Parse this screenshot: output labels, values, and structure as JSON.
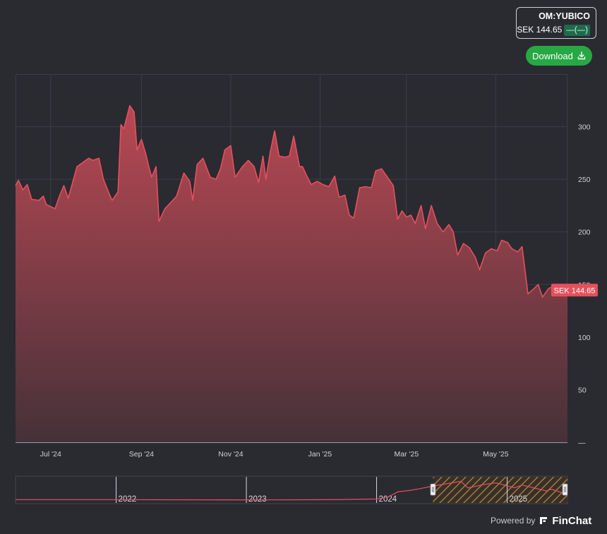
{
  "ticker": {
    "symbol": "OM:YUBICO",
    "price_label": "SEK 144.65",
    "change_label": "—(—)"
  },
  "download": {
    "label": "Download",
    "icon": "download-icon"
  },
  "footer": {
    "powered_by": "Powered by",
    "brand": "FinChat",
    "logo_icon": "finchat-logo-icon"
  },
  "colors": {
    "line": "#e5505d",
    "area_top": "#b94853",
    "area_bottom": "#463139",
    "background": "#2a2a31",
    "download_button": "#27a844",
    "change_badge": "#1d6b4a"
  },
  "chart_data": {
    "type": "area",
    "title": "",
    "xlabel": "",
    "ylabel": "",
    "currency": "SEK",
    "ylim": [
      0,
      350
    ],
    "xlim": [
      "2024-06-07",
      "2025-06-19"
    ],
    "yticks": [
      {
        "value": 300,
        "label": "300"
      },
      {
        "value": 250,
        "label": "250"
      },
      {
        "value": 200,
        "label": "200"
      },
      {
        "value": 150,
        "label": "150"
      },
      {
        "value": 100,
        "label": "100"
      },
      {
        "value": 50,
        "label": "50"
      },
      {
        "value": 0,
        "label": "—"
      }
    ],
    "xticks": [
      {
        "date": "2024-07-01",
        "label": "Jul '24"
      },
      {
        "date": "2024-09-01",
        "label": "Sep '24"
      },
      {
        "date": "2024-11-01",
        "label": "Nov '24"
      },
      {
        "date": "2025-01-01",
        "label": "Jan '25"
      },
      {
        "date": "2025-03-01",
        "label": "Mar '25"
      },
      {
        "date": "2025-05-01",
        "label": "May '25"
      }
    ],
    "last_price_label": "SEK 144.65",
    "last_value": 144.65,
    "grid": true,
    "legend": "none",
    "series": [
      {
        "points": [
          [
            "2024-06-07",
            244
          ],
          [
            "2024-06-09",
            249
          ],
          [
            "2024-06-12",
            240
          ],
          [
            "2024-06-15",
            245
          ],
          [
            "2024-06-18",
            231
          ],
          [
            "2024-06-23",
            230
          ],
          [
            "2024-06-26",
            234
          ],
          [
            "2024-06-28",
            226
          ],
          [
            "2024-07-04",
            222
          ],
          [
            "2024-07-07",
            234
          ],
          [
            "2024-07-10",
            244
          ],
          [
            "2024-07-13",
            232
          ],
          [
            "2024-07-16",
            247
          ],
          [
            "2024-07-19",
            262
          ],
          [
            "2024-07-23",
            266
          ],
          [
            "2024-07-27",
            270
          ],
          [
            "2024-07-30",
            268
          ],
          [
            "2024-08-03",
            270
          ],
          [
            "2024-08-06",
            250
          ],
          [
            "2024-08-10",
            236
          ],
          [
            "2024-08-12",
            230
          ],
          [
            "2024-08-16",
            238
          ],
          [
            "2024-08-18",
            302
          ],
          [
            "2024-08-20",
            298
          ],
          [
            "2024-08-24",
            320
          ],
          [
            "2024-08-27",
            314
          ],
          [
            "2024-08-29",
            278
          ],
          [
            "2024-09-01",
            288
          ],
          [
            "2024-09-04",
            274
          ],
          [
            "2024-09-06",
            262
          ],
          [
            "2024-09-08",
            252
          ],
          [
            "2024-09-11",
            262
          ],
          [
            "2024-09-13",
            210
          ],
          [
            "2024-09-17",
            222
          ],
          [
            "2024-09-21",
            228
          ],
          [
            "2024-09-25",
            234
          ],
          [
            "2024-09-30",
            256
          ],
          [
            "2024-10-04",
            248
          ],
          [
            "2024-10-06",
            230
          ],
          [
            "2024-10-09",
            264
          ],
          [
            "2024-10-13",
            270
          ],
          [
            "2024-10-18",
            252
          ],
          [
            "2024-10-22",
            250
          ],
          [
            "2024-10-25",
            260
          ],
          [
            "2024-10-28",
            278
          ],
          [
            "2024-11-01",
            282
          ],
          [
            "2024-11-04",
            252
          ],
          [
            "2024-11-09",
            262
          ],
          [
            "2024-11-13",
            268
          ],
          [
            "2024-11-17",
            262
          ],
          [
            "2024-11-20",
            247
          ],
          [
            "2024-11-23",
            272
          ],
          [
            "2024-11-25",
            250
          ],
          [
            "2024-11-28",
            276
          ],
          [
            "2024-12-01",
            296
          ],
          [
            "2024-12-04",
            272
          ],
          [
            "2024-12-08",
            271
          ],
          [
            "2024-12-11",
            272
          ],
          [
            "2024-12-14",
            291
          ],
          [
            "2024-12-18",
            262
          ],
          [
            "2024-12-20",
            262
          ],
          [
            "2024-12-23",
            253
          ],
          [
            "2024-12-26",
            245
          ],
          [
            "2024-12-30",
            248
          ],
          [
            "2025-01-03",
            245
          ],
          [
            "2025-01-07",
            243
          ],
          [
            "2025-01-11",
            253
          ],
          [
            "2025-01-14",
            233
          ],
          [
            "2025-01-18",
            235
          ],
          [
            "2025-01-21",
            216
          ],
          [
            "2025-01-24",
            213
          ],
          [
            "2025-01-28",
            242
          ],
          [
            "2025-02-01",
            243
          ],
          [
            "2025-02-05",
            242
          ],
          [
            "2025-02-08",
            258
          ],
          [
            "2025-02-12",
            260
          ],
          [
            "2025-02-16",
            252
          ],
          [
            "2025-02-20",
            244
          ],
          [
            "2025-02-23",
            212
          ],
          [
            "2025-02-26",
            220
          ],
          [
            "2025-03-01",
            214
          ],
          [
            "2025-03-04",
            216
          ],
          [
            "2025-03-07",
            208
          ],
          [
            "2025-03-11",
            225
          ],
          [
            "2025-03-14",
            203
          ],
          [
            "2025-03-18",
            225
          ],
          [
            "2025-03-22",
            208
          ],
          [
            "2025-03-26",
            200
          ],
          [
            "2025-03-30",
            207
          ],
          [
            "2025-04-02",
            200
          ],
          [
            "2025-04-05",
            178
          ],
          [
            "2025-04-09",
            189
          ],
          [
            "2025-04-13",
            185
          ],
          [
            "2025-04-17",
            176
          ],
          [
            "2025-04-20",
            164
          ],
          [
            "2025-04-24",
            180
          ],
          [
            "2025-04-28",
            184
          ],
          [
            "2025-05-02",
            182
          ],
          [
            "2025-05-05",
            192
          ],
          [
            "2025-05-09",
            190
          ],
          [
            "2025-05-12",
            184
          ],
          [
            "2025-05-16",
            181
          ],
          [
            "2025-05-19",
            186
          ],
          [
            "2025-05-23",
            141
          ],
          [
            "2025-05-27",
            146
          ],
          [
            "2025-05-30",
            150
          ],
          [
            "2025-06-02",
            138
          ],
          [
            "2025-06-06",
            146
          ],
          [
            "2025-06-10",
            149
          ],
          [
            "2025-06-14",
            145
          ],
          [
            "2025-06-19",
            144.65
          ]
        ]
      }
    ],
    "navigator": {
      "year_labels": [
        "2022",
        "2023",
        "2024",
        "2025"
      ],
      "x_range": [
        "2021-03-25",
        "2025-06-19"
      ],
      "selection": [
        "2024-06-07",
        "2025-06-19"
      ],
      "points": [
        [
          "2021-03-25",
          20
        ],
        [
          "2022-01-01",
          20
        ],
        [
          "2022-06-01",
          18
        ],
        [
          "2023-01-01",
          16
        ],
        [
          "2023-06-01",
          17
        ],
        [
          "2023-10-01",
          22
        ],
        [
          "2024-01-01",
          30
        ],
        [
          "2024-02-01",
          60
        ],
        [
          "2024-03-01",
          150
        ],
        [
          "2024-04-01",
          170
        ],
        [
          "2024-05-01",
          200
        ],
        [
          "2024-06-07",
          244
        ],
        [
          "2024-08-24",
          320
        ],
        [
          "2024-09-13",
          212
        ],
        [
          "2024-10-28",
          270
        ],
        [
          "2024-12-01",
          296
        ],
        [
          "2025-01-21",
          215
        ],
        [
          "2025-02-12",
          260
        ],
        [
          "2025-04-20",
          164
        ],
        [
          "2025-05-05",
          192
        ],
        [
          "2025-06-02",
          138
        ],
        [
          "2025-06-19",
          145
        ]
      ]
    }
  }
}
